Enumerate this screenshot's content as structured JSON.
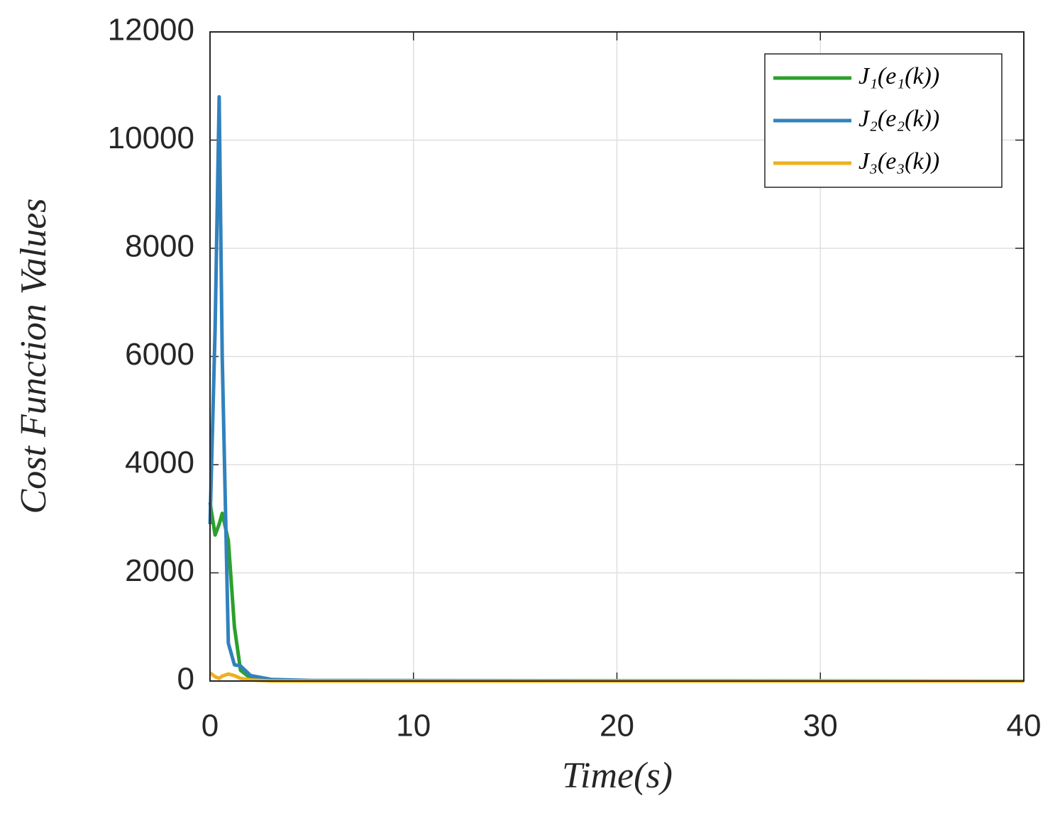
{
  "chart_data": {
    "type": "line",
    "xlabel": "Time(s)",
    "ylabel": "Cost Function Values",
    "x": [
      0,
      0.25,
      0.45,
      0.6,
      0.9,
      1.2,
      1.5,
      2,
      3,
      5,
      40
    ],
    "series": [
      {
        "name": "J₁(e₁(k))",
        "color": "#2ca02c",
        "values": [
          3300,
          2700,
          2900,
          3100,
          2600,
          1000,
          200,
          50,
          10,
          0,
          0
        ]
      },
      {
        "name": "J₂(e₂(k))",
        "color": "#3182bd",
        "values": [
          2900,
          6500,
          10800,
          6000,
          700,
          300,
          280,
          100,
          30,
          10,
          0
        ]
      },
      {
        "name": "J₃(e₃(k))",
        "color": "#edb120",
        "values": [
          150,
          80,
          50,
          90,
          130,
          100,
          50,
          20,
          0,
          0,
          0
        ]
      }
    ],
    "xlim": [
      0,
      40
    ],
    "xticks": [
      0,
      10,
      20,
      30,
      40
    ],
    "ylim": [
      0,
      12000
    ],
    "yticks": [
      0,
      2000,
      4000,
      6000,
      8000,
      10000,
      12000
    ],
    "grid": true,
    "legend": "upper right"
  }
}
